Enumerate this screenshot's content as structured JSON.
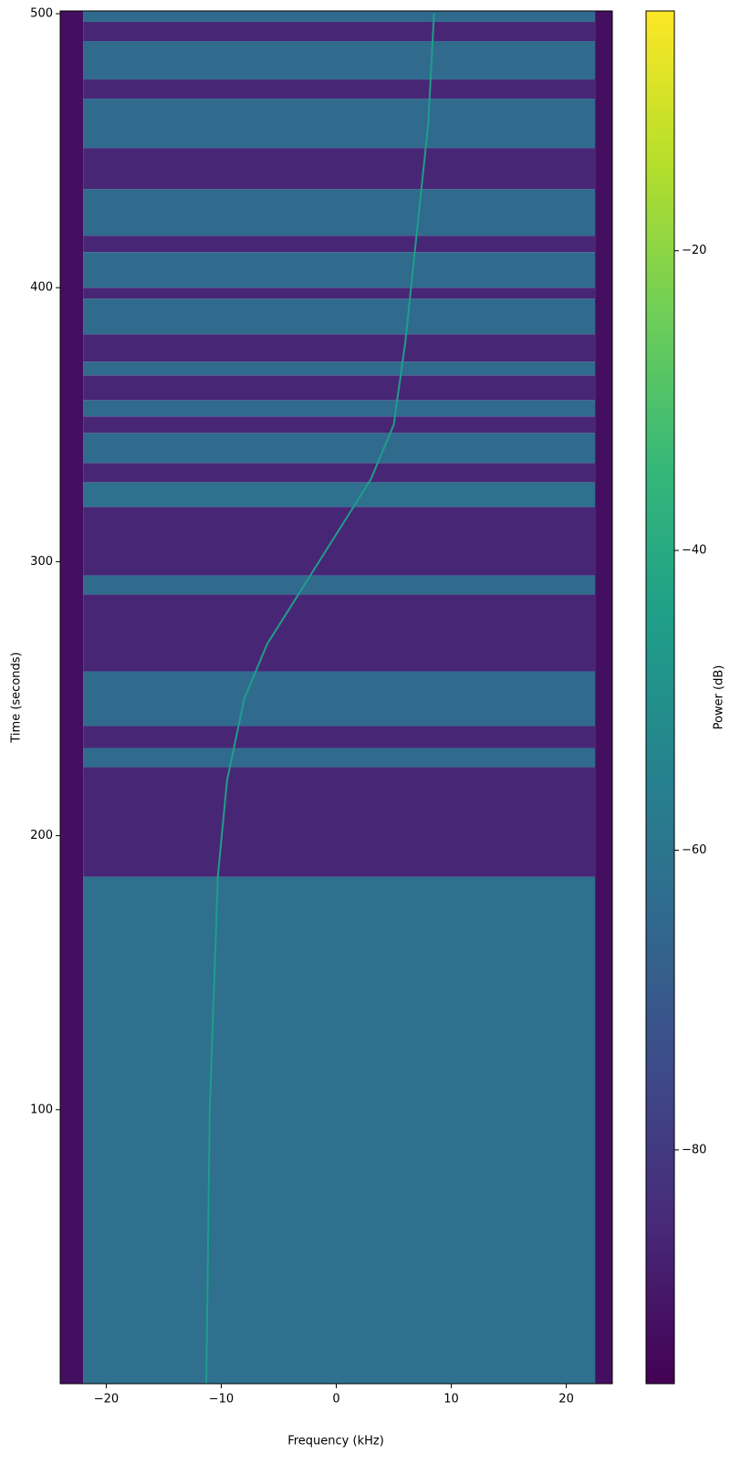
{
  "chart_data": {
    "type": "spectrogram",
    "x_label": "Frequency (kHz)",
    "y_label": "Time (seconds)",
    "colorbar_label": "Power (dB)",
    "colormap": "viridis",
    "xlim": [
      -24,
      24
    ],
    "xticks": [
      {
        "value": -20,
        "label": "−20"
      },
      {
        "value": -10,
        "label": "−10"
      },
      0,
      10,
      20
    ],
    "ylim": [
      0,
      501
    ],
    "yticks": [
      100,
      200,
      300,
      400,
      500
    ],
    "clim": [
      -95.6,
      -4
    ],
    "cticks": [
      {
        "value": -20,
        "label": "−20"
      },
      {
        "value": -40,
        "label": "−40"
      },
      {
        "value": -60,
        "label": "−60"
      },
      {
        "value": -80,
        "label": "−80"
      }
    ],
    "passband": [
      -22,
      22.5
    ],
    "noise_floor": -92,
    "bands": [
      {
        "start": 0,
        "end": 185,
        "level": -62
      },
      {
        "start": 185,
        "end": 225,
        "level": -86
      },
      {
        "start": 225,
        "end": 232,
        "level": -64
      },
      {
        "start": 232,
        "end": 240,
        "level": -86
      },
      {
        "start": 240,
        "end": 260,
        "level": -64
      },
      {
        "start": 260,
        "end": 288,
        "level": -86
      },
      {
        "start": 288,
        "end": 295,
        "level": -64
      },
      {
        "start": 295,
        "end": 320,
        "level": -86
      },
      {
        "start": 320,
        "end": 329,
        "level": -62
      },
      {
        "start": 329,
        "end": 336,
        "level": -86
      },
      {
        "start": 336,
        "end": 347,
        "level": -64
      },
      {
        "start": 347,
        "end": 353,
        "level": -86
      },
      {
        "start": 353,
        "end": 359,
        "level": -64
      },
      {
        "start": 359,
        "end": 368,
        "level": -86
      },
      {
        "start": 368,
        "end": 373,
        "level": -64
      },
      {
        "start": 373,
        "end": 383,
        "level": -86
      },
      {
        "start": 383,
        "end": 396,
        "level": -64
      },
      {
        "start": 396,
        "end": 400,
        "level": -86
      },
      {
        "start": 400,
        "end": 413,
        "level": -64
      },
      {
        "start": 413,
        "end": 419,
        "level": -86
      },
      {
        "start": 419,
        "end": 436,
        "level": -64
      },
      {
        "start": 436,
        "end": 451,
        "level": -86
      },
      {
        "start": 451,
        "end": 469,
        "level": -64
      },
      {
        "start": 469,
        "end": 476,
        "level": -86
      },
      {
        "start": 476,
        "end": 490,
        "level": -64
      },
      {
        "start": 490,
        "end": 497,
        "level": -86
      },
      {
        "start": 497,
        "end": 501,
        "level": -64
      }
    ],
    "carrier": {
      "level": -45,
      "x": [
        -11.3,
        -11,
        -10.5,
        -10.3,
        -9.5,
        -8,
        -6,
        -3,
        0,
        3,
        5,
        6,
        7,
        8,
        8.5
      ],
      "y": [
        0,
        100,
        160,
        185,
        220,
        250,
        270,
        290,
        310,
        330,
        350,
        380,
        420,
        460,
        500
      ]
    }
  }
}
